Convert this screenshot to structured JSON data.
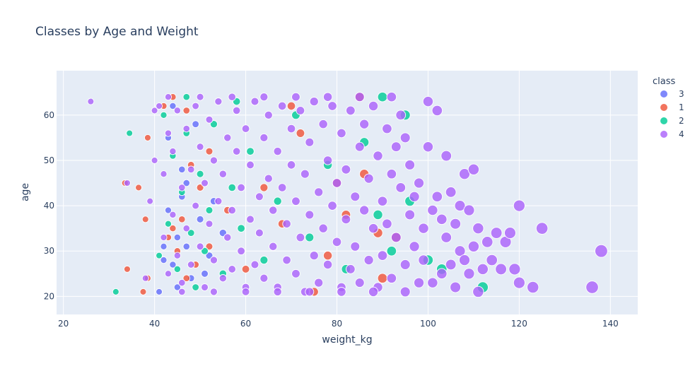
{
  "chart_data": {
    "type": "scatter",
    "title": "Classes by Age and Weight",
    "xlabel": "weight_kg",
    "ylabel": "age",
    "xlim": [
      18.5,
      146
    ],
    "ylim": [
      16,
      69.8
    ],
    "x_ticks": [
      20,
      40,
      60,
      80,
      100,
      120,
      140
    ],
    "y_ticks": [
      20,
      30,
      40,
      50,
      60
    ],
    "grid": true,
    "legend_title": "class",
    "legend_position": "top-right",
    "plot_background": "#e5ecf6",
    "series": [
      {
        "name": "3",
        "color": "#636efa",
        "points": [
          [
            41,
            21
          ],
          [
            42,
            28
          ],
          [
            43,
            39
          ],
          [
            44,
            27
          ],
          [
            45,
            33
          ],
          [
            46,
            42
          ],
          [
            47,
            31
          ],
          [
            48,
            24
          ],
          [
            50,
            37
          ],
          [
            52,
            29
          ],
          [
            43,
            55
          ],
          [
            46,
            48
          ],
          [
            44,
            62
          ],
          [
            49,
            58
          ],
          [
            51,
            25
          ],
          [
            47,
            45
          ],
          [
            53,
            41
          ],
          [
            55,
            34
          ],
          [
            42,
            31
          ],
          [
            45,
            22
          ]
        ]
      },
      {
        "name": "1",
        "color": "#ef553b",
        "points": [
          [
            33.5,
            45
          ],
          [
            36.5,
            44
          ],
          [
            38,
            37
          ],
          [
            38.5,
            55
          ],
          [
            34,
            26
          ],
          [
            37.5,
            21
          ],
          [
            38.5,
            24
          ],
          [
            42,
            62
          ],
          [
            44,
            64
          ],
          [
            45,
            30
          ],
          [
            47,
            24
          ],
          [
            48,
            49
          ],
          [
            44,
            35
          ],
          [
            46,
            37
          ],
          [
            49,
            27
          ],
          [
            50,
            44
          ],
          [
            52,
            52
          ],
          [
            43,
            33
          ],
          [
            47,
            61
          ],
          [
            52,
            31
          ],
          [
            56,
            39
          ],
          [
            60,
            26
          ],
          [
            64,
            44
          ],
          [
            68,
            36
          ],
          [
            72,
            56
          ],
          [
            75,
            21
          ],
          [
            78,
            29
          ],
          [
            82,
            38
          ],
          [
            86,
            47
          ],
          [
            89,
            34
          ],
          [
            93,
            33
          ],
          [
            90,
            24
          ],
          [
            80,
            45
          ],
          [
            70,
            62
          ],
          [
            85,
            64
          ]
        ]
      },
      {
        "name": "2",
        "color": "#00cc96",
        "points": [
          [
            31.5,
            21
          ],
          [
            34.5,
            56
          ],
          [
            41,
            29
          ],
          [
            42,
            60
          ],
          [
            43,
            36
          ],
          [
            44,
            51
          ],
          [
            45,
            26
          ],
          [
            46,
            43
          ],
          [
            47,
            56
          ],
          [
            48,
            34
          ],
          [
            49,
            22
          ],
          [
            50,
            47
          ],
          [
            51,
            30
          ],
          [
            52,
            39
          ],
          [
            53,
            58
          ],
          [
            55,
            25
          ],
          [
            57,
            44
          ],
          [
            59,
            35
          ],
          [
            61,
            52
          ],
          [
            64,
            28
          ],
          [
            67,
            41
          ],
          [
            71,
            60
          ],
          [
            74,
            33
          ],
          [
            78,
            49
          ],
          [
            82,
            26
          ],
          [
            86,
            54
          ],
          [
            89,
            38
          ],
          [
            92,
            30
          ],
          [
            95,
            60
          ],
          [
            96,
            41
          ],
          [
            100,
            28
          ],
          [
            103,
            26
          ],
          [
            112,
            22
          ],
          [
            90,
            64
          ],
          [
            58,
            63
          ],
          [
            47,
            64
          ]
        ]
      },
      {
        "name": "4",
        "color": "#ab63fa",
        "points": [
          [
            26,
            63
          ],
          [
            34,
            45
          ],
          [
            38,
            24
          ],
          [
            39,
            41
          ],
          [
            40,
            61
          ],
          [
            40,
            50
          ],
          [
            41,
            62
          ],
          [
            42,
            47
          ],
          [
            42,
            33
          ],
          [
            43,
            56
          ],
          [
            43,
            25
          ],
          [
            44,
            38
          ],
          [
            44,
            52
          ],
          [
            45,
            29
          ],
          [
            45,
            61
          ],
          [
            46,
            44
          ],
          [
            46,
            23
          ],
          [
            47,
            35
          ],
          [
            47,
            57
          ],
          [
            48,
            48
          ],
          [
            48,
            27
          ],
          [
            49,
            40
          ],
          [
            49,
            62
          ],
          [
            50,
            31
          ],
          [
            50,
            53
          ],
          [
            51,
            22
          ],
          [
            51,
            45
          ],
          [
            52,
            36
          ],
          [
            52,
            59
          ],
          [
            53,
            28
          ],
          [
            53,
            50
          ],
          [
            54,
            41
          ],
          [
            54,
            63
          ],
          [
            55,
            24
          ],
          [
            55,
            47
          ],
          [
            56,
            33
          ],
          [
            56,
            55
          ],
          [
            57,
            39
          ],
          [
            57,
            26
          ],
          [
            58,
            52
          ],
          [
            58,
            61
          ],
          [
            59,
            30
          ],
          [
            59,
            44
          ],
          [
            60,
            22
          ],
          [
            60,
            57
          ],
          [
            61,
            37
          ],
          [
            61,
            49
          ],
          [
            62,
            27
          ],
          [
            62,
            63
          ],
          [
            63,
            42
          ],
          [
            63,
            34
          ],
          [
            64,
            55
          ],
          [
            64,
            24
          ],
          [
            65,
            46
          ],
          [
            65,
            60
          ],
          [
            66,
            31
          ],
          [
            66,
            39
          ],
          [
            67,
            52
          ],
          [
            67,
            22
          ],
          [
            68,
            44
          ],
          [
            68,
            62
          ],
          [
            69,
            28
          ],
          [
            69,
            36
          ],
          [
            70,
            57
          ],
          [
            70,
            49
          ],
          [
            71,
            25
          ],
          [
            71,
            41
          ],
          [
            72,
            33
          ],
          [
            72,
            61
          ],
          [
            73,
            47
          ],
          [
            73,
            21
          ],
          [
            74,
            38
          ],
          [
            74,
            54
          ],
          [
            75,
            29
          ],
          [
            75,
            63
          ],
          [
            76,
            43
          ],
          [
            76,
            23
          ],
          [
            77,
            35
          ],
          [
            77,
            58
          ],
          [
            78,
            50
          ],
          [
            78,
            27
          ],
          [
            79,
            40
          ],
          [
            79,
            62
          ],
          [
            80,
            32
          ],
          [
            80,
            45
          ],
          [
            81,
            22
          ],
          [
            81,
            56
          ],
          [
            82,
            37
          ],
          [
            82,
            48
          ],
          [
            83,
            26
          ],
          [
            83,
            61
          ],
          [
            84,
            42
          ],
          [
            84,
            31
          ],
          [
            85,
            53
          ],
          [
            85,
            23
          ],
          [
            86,
            39
          ],
          [
            86,
            58
          ],
          [
            87,
            28
          ],
          [
            87,
            46
          ],
          [
            88,
            35
          ],
          [
            88,
            62
          ],
          [
            89,
            22
          ],
          [
            89,
            51
          ],
          [
            90,
            41
          ],
          [
            90,
            29
          ],
          [
            91,
            57
          ],
          [
            91,
            36
          ],
          [
            92,
            47
          ],
          [
            92,
            24
          ],
          [
            93,
            53
          ],
          [
            93,
            33
          ],
          [
            94,
            44
          ],
          [
            94,
            60
          ],
          [
            95,
            27
          ],
          [
            95,
            55
          ],
          [
            96,
            38
          ],
          [
            96,
            49
          ],
          [
            97,
            31
          ],
          [
            97,
            42
          ],
          [
            98,
            23
          ],
          [
            98,
            45
          ],
          [
            99,
            35
          ],
          [
            99,
            28
          ],
          [
            100,
            63
          ],
          [
            100,
            53
          ],
          [
            101,
            39
          ],
          [
            101,
            23
          ],
          [
            102,
            61
          ],
          [
            102,
            42
          ],
          [
            103,
            37
          ],
          [
            103,
            25
          ],
          [
            104,
            51
          ],
          [
            104,
            33
          ],
          [
            105,
            43
          ],
          [
            105,
            27
          ],
          [
            106,
            36
          ],
          [
            106,
            22
          ],
          [
            107,
            40
          ],
          [
            107,
            30
          ],
          [
            108,
            28
          ],
          [
            108,
            47
          ],
          [
            109,
            39
          ],
          [
            109,
            25
          ],
          [
            110,
            48
          ],
          [
            110,
            31
          ],
          [
            111,
            35
          ],
          [
            111,
            21
          ],
          [
            112,
            26
          ],
          [
            113,
            32
          ],
          [
            114,
            28
          ],
          [
            115,
            34
          ],
          [
            116,
            26
          ],
          [
            117,
            32
          ],
          [
            118,
            34
          ],
          [
            119,
            26
          ],
          [
            120,
            40
          ],
          [
            120,
            23
          ],
          [
            123,
            22
          ],
          [
            125,
            35
          ],
          [
            136,
            22
          ],
          [
            138,
            30
          ],
          [
            43,
            64
          ],
          [
            50,
            64
          ],
          [
            57,
            64
          ],
          [
            64,
            64
          ],
          [
            71,
            64
          ],
          [
            78,
            64
          ],
          [
            85,
            64
          ],
          [
            92,
            64
          ],
          [
            60,
            21
          ],
          [
            67,
            21
          ],
          [
            74,
            21
          ],
          [
            81,
            21
          ],
          [
            88,
            21
          ],
          [
            95,
            21
          ],
          [
            53,
            21
          ],
          [
            46,
            21
          ]
        ]
      }
    ]
  }
}
